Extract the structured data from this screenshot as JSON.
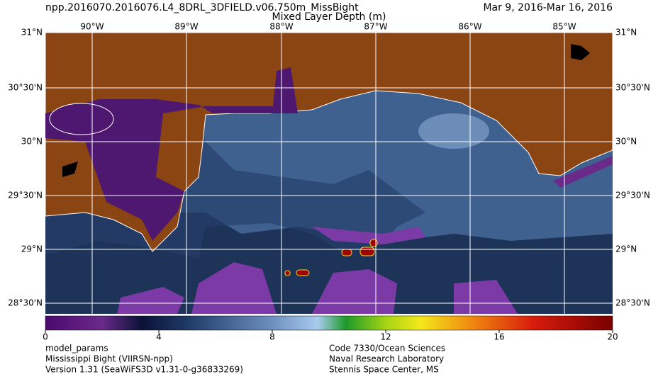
{
  "header": {
    "title": "npp.2016070.2016076.L4_8DRL_3DFIELD.v06.750m_MissBight",
    "date_range": "Mar  9, 2016-Mar 16, 2016",
    "subtitle": "Mixed Layer Depth (m)"
  },
  "map": {
    "longitudes": [
      "90°W",
      "89°W",
      "88°W",
      "87°W",
      "86°W",
      "85°W"
    ],
    "latitudes": [
      "31°N",
      "30°30'N",
      "30°N",
      "29°30'N",
      "29°N",
      "28°30'N"
    ]
  },
  "colorbar": {
    "lim": [
      0,
      20
    ],
    "ticks": [
      0,
      4,
      8,
      12,
      16,
      20
    ]
  },
  "footer": {
    "left": [
      "model_params",
      "Mississippi Bight (VIIRSN-npp)",
      "Version 1.31 (SeaWiFS3D v1.31-0-g36833269)"
    ],
    "right": [
      "Code 7330/Ocean Sciences",
      "Naval Research Laboratory",
      "Stennis Space Center, MS"
    ]
  }
}
